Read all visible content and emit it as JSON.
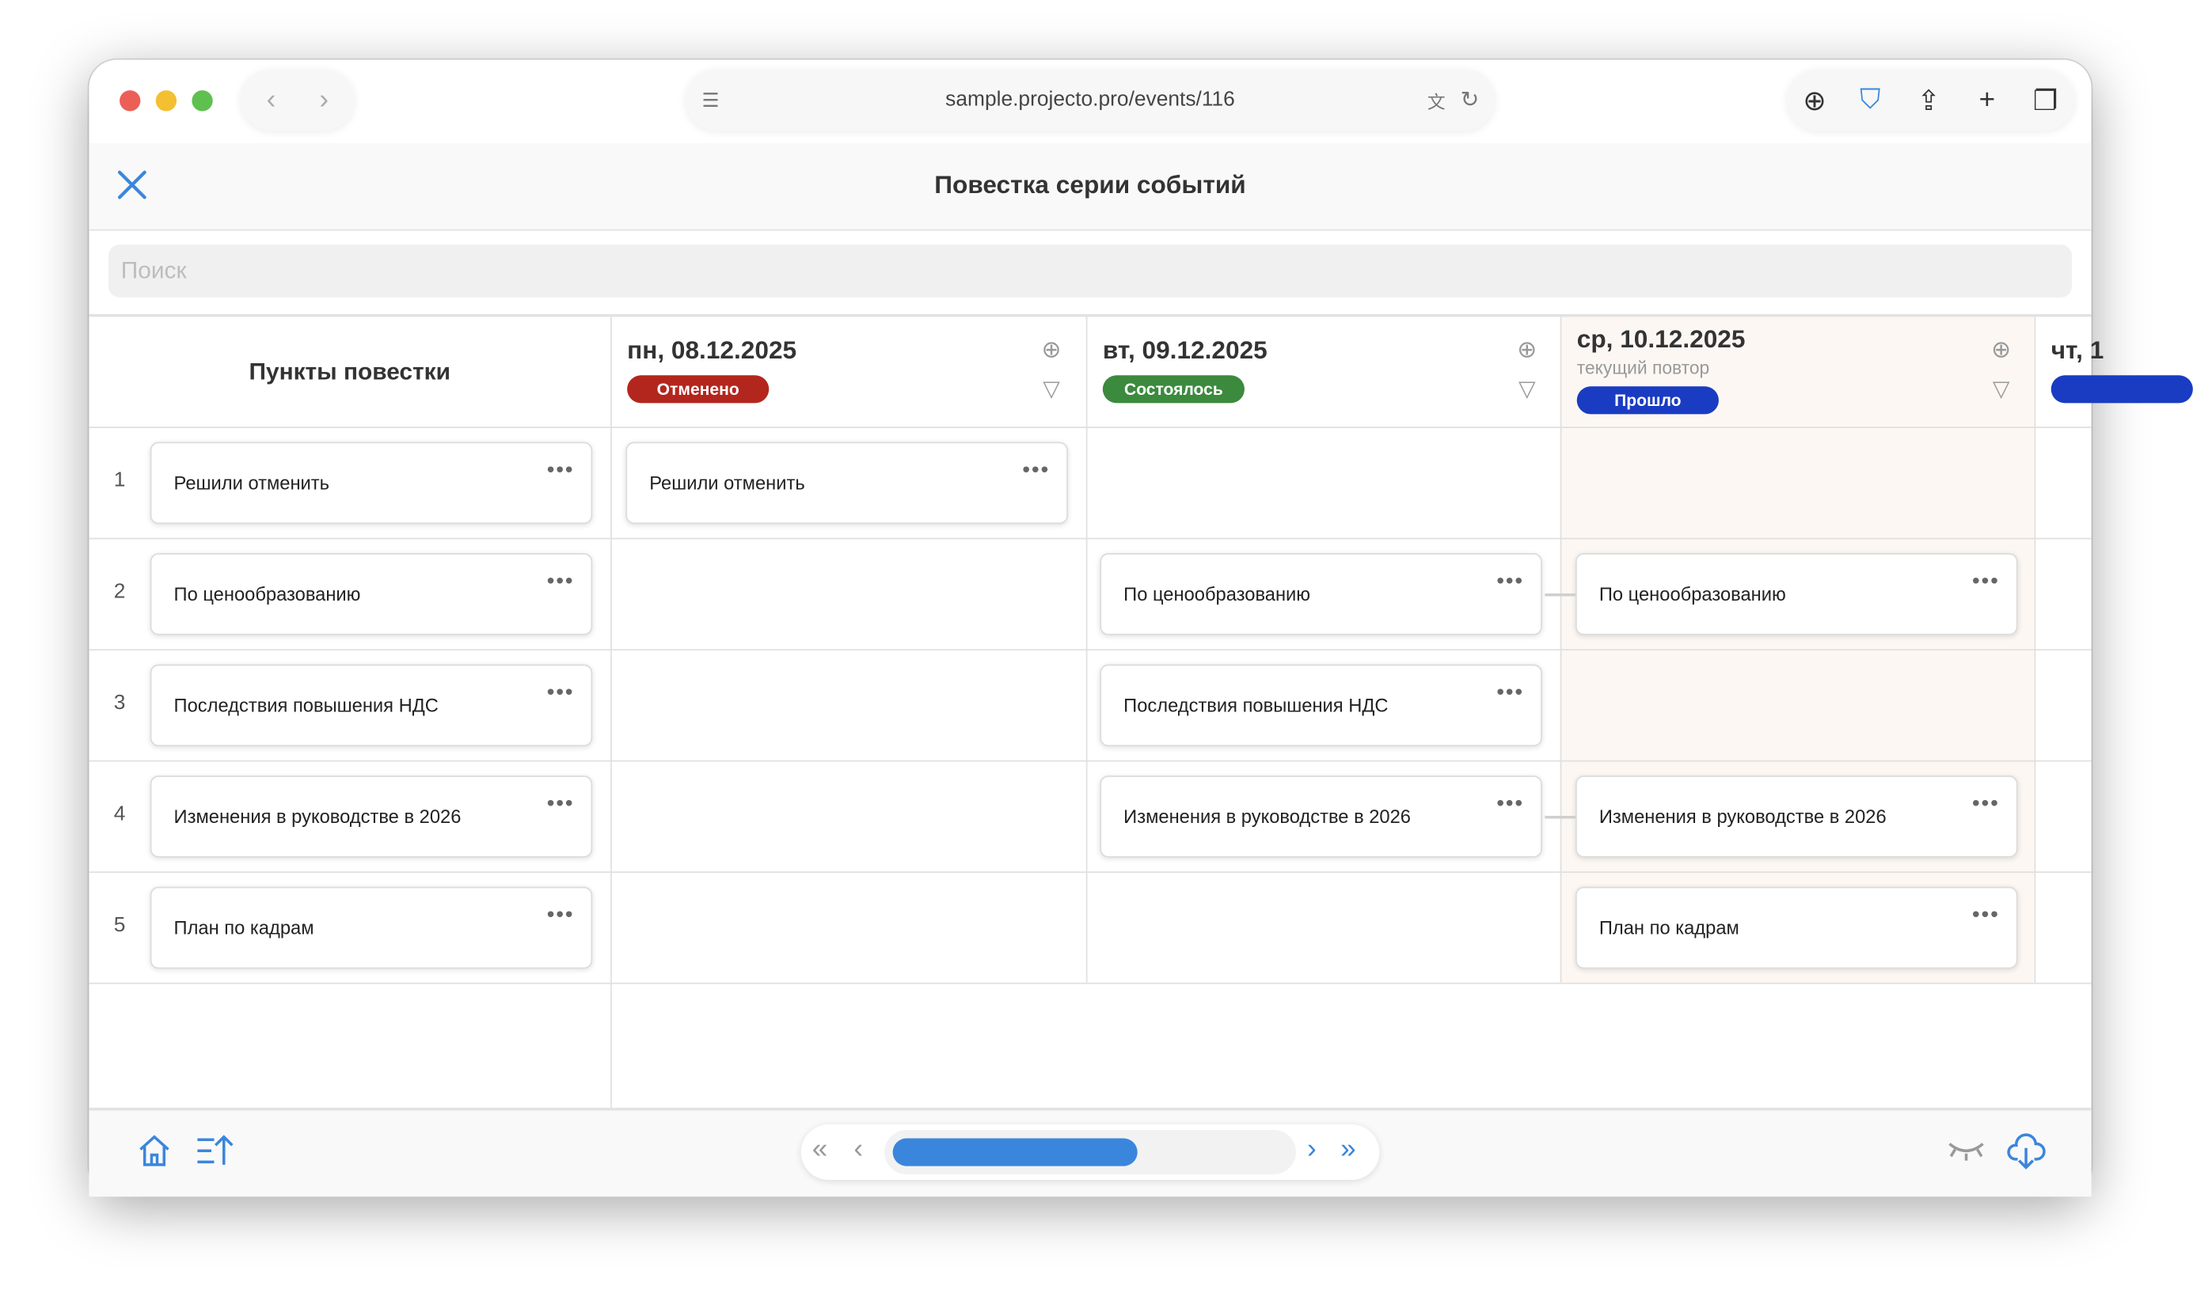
{
  "browser": {
    "url": "sample.projecto.pro/events/116"
  },
  "header": {
    "title": "Повестка серии событий",
    "close_icon": "close-icon"
  },
  "search": {
    "placeholder": "Поиск",
    "value": ""
  },
  "table": {
    "first_column_title": "Пункты повестки",
    "columns": [
      {
        "date": "пн, 08.12.2025",
        "subtitle": "",
        "status": "Отменено",
        "status_color": "#b3261e"
      },
      {
        "date": "вт, 09.12.2025",
        "subtitle": "",
        "status": "Состоялось",
        "status_color": "#3c8a3e"
      },
      {
        "date": "ср, 10.12.2025",
        "subtitle": "текущий повтор",
        "status": "Прошло",
        "status_color": "#1a3cc2",
        "highlighted": true
      },
      {
        "date": "чт, 1",
        "subtitle": "",
        "status": "",
        "status_color": "#1a3cc2"
      }
    ],
    "rows": [
      {
        "number": "1",
        "item": "Решили отменить",
        "cells": [
          "Решили отменить",
          "",
          ""
        ]
      },
      {
        "number": "2",
        "item": "По ценообразованию",
        "cells": [
          "",
          "По ценообразованию",
          "По ценообразованию"
        ]
      },
      {
        "number": "3",
        "item": "Последствия повышения НДС",
        "cells": [
          "",
          "Последствия повышения НДС",
          ""
        ]
      },
      {
        "number": "4",
        "item": "Изменения в руководстве в 2026",
        "cells": [
          "",
          "Изменения в руководстве в 2026",
          "Изменения в руководстве в 2026"
        ]
      },
      {
        "number": "5",
        "item": "План по кадрам",
        "cells": [
          "",
          "",
          "План по кадрам"
        ]
      }
    ],
    "more_label": "•••"
  },
  "footer": {
    "scroll_position_percent": 0,
    "scroll_visible_fraction": 0.62
  },
  "colors": {
    "accent": "#3a86dc",
    "highlight_column_bg": "#fcf7f3"
  }
}
